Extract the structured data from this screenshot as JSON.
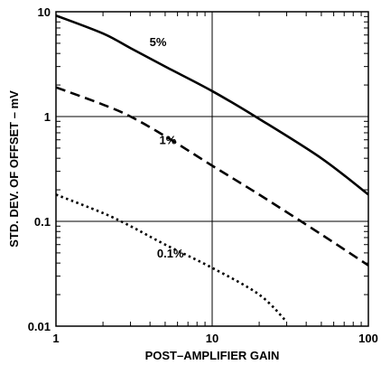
{
  "chart_data": {
    "type": "line",
    "x_scale": "log",
    "y_scale": "log",
    "xlim": [
      1,
      100
    ],
    "ylim": [
      0.01,
      10
    ],
    "xlabel": "POST–AMPLIFIER GAIN",
    "ylabel": "STD. DEV. OF OFFSET – mV",
    "x_ticks": [
      {
        "value": 1,
        "label": "1"
      },
      {
        "value": 10,
        "label": "10"
      },
      {
        "value": 100,
        "label": "100"
      }
    ],
    "y_ticks": [
      {
        "value": 0.01,
        "label": "0.01"
      },
      {
        "value": 0.1,
        "label": "0.1"
      },
      {
        "value": 1,
        "label": "1"
      },
      {
        "value": 10,
        "label": "10"
      }
    ],
    "grid": "major",
    "series": [
      {
        "name": "5%",
        "style": "solid",
        "label_at": [
          4.5,
          5.2
        ],
        "points": [
          [
            1,
            9.2
          ],
          [
            2,
            6.2
          ],
          [
            3,
            4.5
          ],
          [
            5,
            3.0
          ],
          [
            10,
            1.75
          ],
          [
            20,
            0.95
          ],
          [
            50,
            0.4
          ],
          [
            100,
            0.18
          ]
        ]
      },
      {
        "name": "1%",
        "style": "dashed",
        "label_at": [
          5.2,
          0.6
        ],
        "points": [
          [
            1,
            1.9
          ],
          [
            2,
            1.3
          ],
          [
            3,
            1.0
          ],
          [
            5,
            0.65
          ],
          [
            10,
            0.34
          ],
          [
            20,
            0.18
          ],
          [
            50,
            0.075
          ],
          [
            100,
            0.038
          ]
        ]
      },
      {
        "name": "0.1%",
        "style": "dotted",
        "label_at": [
          5.4,
          0.05
        ],
        "points": [
          [
            1,
            0.18
          ],
          [
            2,
            0.12
          ],
          [
            3,
            0.09
          ],
          [
            5,
            0.06
          ],
          [
            10,
            0.036
          ],
          [
            20,
            0.02
          ],
          [
            30,
            0.011
          ]
        ]
      }
    ]
  }
}
